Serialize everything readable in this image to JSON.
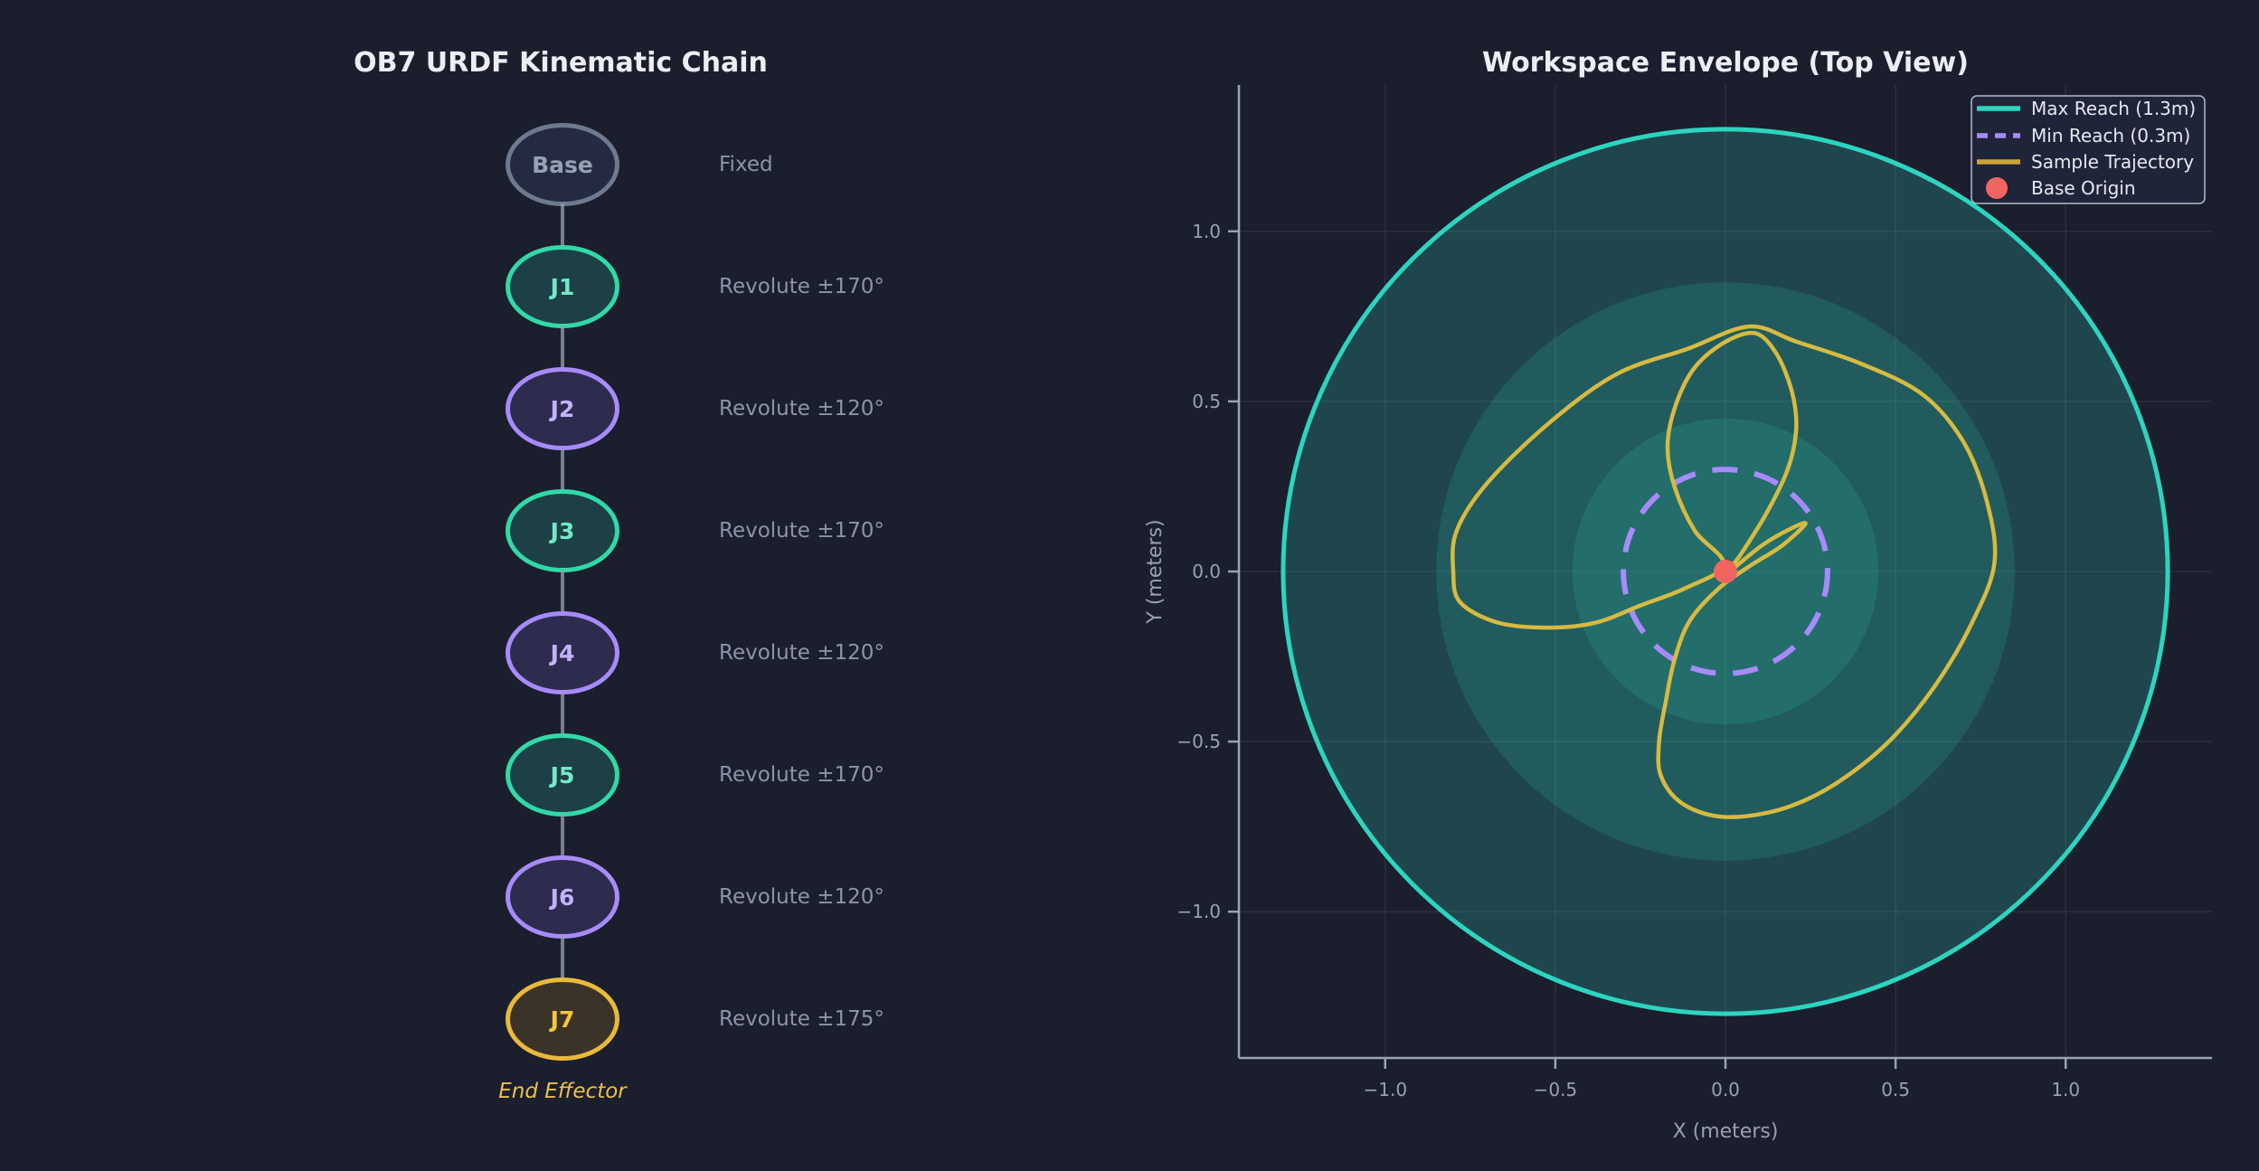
{
  "left_panel": {
    "title": "OB7 URDF Kinematic Chain",
    "end_effector_label": "End Effector",
    "nodes": [
      {
        "name": "Base",
        "joint_type": "Fixed",
        "border_color": "#6e7a8e",
        "fill_color": "#242a40",
        "text_color": "#97a1b4"
      },
      {
        "name": "J1",
        "joint_type": "Revolute ±170°",
        "border_color": "#31d9a8",
        "fill_color": "#1d4046",
        "text_color": "#74e8c8"
      },
      {
        "name": "J2",
        "joint_type": "Revolute ±120°",
        "border_color": "#a78bfa",
        "fill_color": "#2d2c4e",
        "text_color": "#c3b2fc"
      },
      {
        "name": "J3",
        "joint_type": "Revolute ±170°",
        "border_color": "#31d9a8",
        "fill_color": "#1d4046",
        "text_color": "#74e8c8"
      },
      {
        "name": "J4",
        "joint_type": "Revolute ±120°",
        "border_color": "#a78bfa",
        "fill_color": "#2d2c4e",
        "text_color": "#c3b2fc"
      },
      {
        "name": "J5",
        "joint_type": "Revolute ±170°",
        "border_color": "#31d9a8",
        "fill_color": "#1d4046",
        "text_color": "#74e8c8"
      },
      {
        "name": "J6",
        "joint_type": "Revolute ±120°",
        "border_color": "#a78bfa",
        "fill_color": "#2d2c4e",
        "text_color": "#c3b2fc"
      },
      {
        "name": "J7",
        "joint_type": "Revolute ±175°",
        "border_color": "#e9b93a",
        "fill_color": "#3b3328",
        "text_color": "#f2c63f"
      }
    ]
  },
  "chart": {
    "title": "Workspace Envelope (Top View)"
  },
  "chart_data": {
    "type": "line",
    "title": "Workspace Envelope (Top View)",
    "xlabel": "X (meters)",
    "ylabel": "Y (meters)",
    "xlim": [
      -1.43,
      1.43
    ],
    "ylim": [
      -1.43,
      1.43
    ],
    "grid": true,
    "legend_position": "upper right",
    "xticks": [
      {
        "v": -1.0,
        "label": "−1.0"
      },
      {
        "v": -0.5,
        "label": "−0.5"
      },
      {
        "v": 0.0,
        "label": "0.0"
      },
      {
        "v": 0.5,
        "label": "0.5"
      },
      {
        "v": 1.0,
        "label": "1.0"
      }
    ],
    "yticks": [
      {
        "v": -1.0,
        "label": "−1.0"
      },
      {
        "v": -0.5,
        "label": "−0.5"
      },
      {
        "v": 0.0,
        "label": "0.0"
      },
      {
        "v": 0.5,
        "label": "0.5"
      },
      {
        "v": 1.0,
        "label": "1.0"
      }
    ],
    "max_reach_m": 1.3,
    "min_reach_m": 0.3,
    "workspace_rings_m": [
      {
        "radius_m": 1.3,
        "fill_alpha": 0.22,
        "edge": true
      },
      {
        "radius_m": 0.85,
        "fill_alpha": 0.15,
        "edge": false
      },
      {
        "radius_m": 0.45,
        "fill_alpha": 0.15,
        "edge": false
      }
    ],
    "base_origin_xy": [
      0.0,
      0.0
    ],
    "legend": [
      {
        "label": "Max Reach (1.3m)",
        "color": "#2dd4bf",
        "swatch": "line"
      },
      {
        "label": "Min Reach (0.3m)",
        "color": "#a78bfa",
        "swatch": "dashed-line"
      },
      {
        "label": "Sample Trajectory",
        "color": "#c9a535",
        "swatch": "line"
      },
      {
        "label": "Base Origin",
        "color": "#f0655f",
        "swatch": "circle"
      }
    ],
    "trajectory_xy_m": [
      [
        -0.8,
        0.0
      ],
      [
        -0.78,
        -0.09
      ],
      [
        -0.67,
        -0.15
      ],
      [
        -0.52,
        -0.165
      ],
      [
        -0.38,
        -0.15
      ],
      [
        -0.25,
        -0.1
      ],
      [
        -0.12,
        -0.05
      ],
      [
        -0.005,
        0.02
      ],
      [
        -0.09,
        0.12
      ],
      [
        -0.15,
        0.25
      ],
      [
        -0.17,
        0.37
      ],
      [
        -0.146,
        0.49
      ],
      [
        -0.09,
        0.6
      ],
      [
        0.0,
        0.675
      ],
      [
        0.088,
        0.7
      ],
      [
        0.15,
        0.64
      ],
      [
        0.195,
        0.53
      ],
      [
        0.208,
        0.42
      ],
      [
        0.183,
        0.3
      ],
      [
        0.12,
        0.17
      ],
      [
        0.045,
        0.05
      ],
      [
        0.005,
        -0.005
      ],
      [
        0.105,
        0.075
      ],
      [
        0.19,
        0.125
      ],
      [
        0.235,
        0.14
      ],
      [
        0.165,
        0.075
      ],
      [
        0.07,
        0.015
      ],
      [
        -0.02,
        -0.05
      ],
      [
        -0.105,
        -0.145
      ],
      [
        -0.15,
        -0.26
      ],
      [
        -0.175,
        -0.38
      ],
      [
        -0.195,
        -0.5
      ],
      [
        -0.19,
        -0.6
      ],
      [
        -0.13,
        -0.68
      ],
      [
        -0.02,
        -0.72
      ],
      [
        0.12,
        -0.71
      ],
      [
        0.25,
        -0.665
      ],
      [
        0.38,
        -0.585
      ],
      [
        0.5,
        -0.48
      ],
      [
        0.62,
        -0.33
      ],
      [
        0.72,
        -0.16
      ],
      [
        0.79,
        0.02
      ],
      [
        0.77,
        0.2
      ],
      [
        0.7,
        0.38
      ],
      [
        0.58,
        0.52
      ],
      [
        0.4,
        0.61
      ],
      [
        0.21,
        0.675
      ],
      [
        0.07,
        0.72
      ],
      [
        -0.11,
        0.655
      ],
      [
        -0.32,
        0.58
      ],
      [
        -0.52,
        0.435
      ],
      [
        -0.7,
        0.26
      ],
      [
        -0.79,
        0.12
      ]
    ],
    "trajectory_color": "#d6ba41",
    "base_origin_color": "#f0655f",
    "max_reach_color": "#2dd4bf",
    "min_reach_color": "#a78bfa"
  },
  "style": {
    "background": "#1b1e2d",
    "grid_color": "rgba(255,255,255,0.07)",
    "spine_color": "#9aa3b5",
    "tick_label_color": "#99a0b4",
    "axis_label_color": "#9aa0b2",
    "title_color": "#eceef4",
    "legend_bg": "rgba(33,37,57,0.95)",
    "legend_border": "#b6bcc9",
    "legend_text": "#e5e8f0"
  }
}
